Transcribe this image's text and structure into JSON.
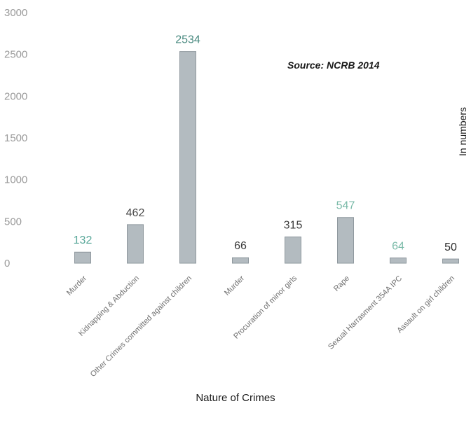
{
  "chart_data": {
    "type": "bar",
    "title": "",
    "annotation": "Source: NCRB 2014",
    "xlabel": "Nature of Crimes",
    "ylabel": "In numbers",
    "ylim": [
      0,
      3000
    ],
    "yticks": [
      "0",
      "500",
      "1000",
      "1500",
      "2000",
      "2500",
      "3000"
    ],
    "grid": false,
    "legend": "none",
    "categories": [
      "Murder",
      "Kidnapping & Abduction",
      "Other Crimes committed against children",
      "Murder",
      "Procuration of minor girls",
      "Rape",
      "Sexual Harrasment 354A IPC",
      "Assault on girl children"
    ],
    "values": [
      132,
      462,
      2534,
      66,
      315,
      547,
      64,
      50
    ],
    "value_labels": [
      "132",
      "462",
      "2534",
      "66",
      "315",
      "547",
      "64",
      "50"
    ],
    "colors": {
      "bar": "#b3bbc0",
      "bar_edge": "#8f989e",
      "label_colors": [
        "#5aa89a",
        "#4a4a4a",
        "#4a8a80",
        "#3a3a3a",
        "#3a3a3a",
        "#7abaa8",
        "#7abaa8",
        "#2a2a2a"
      ]
    }
  }
}
